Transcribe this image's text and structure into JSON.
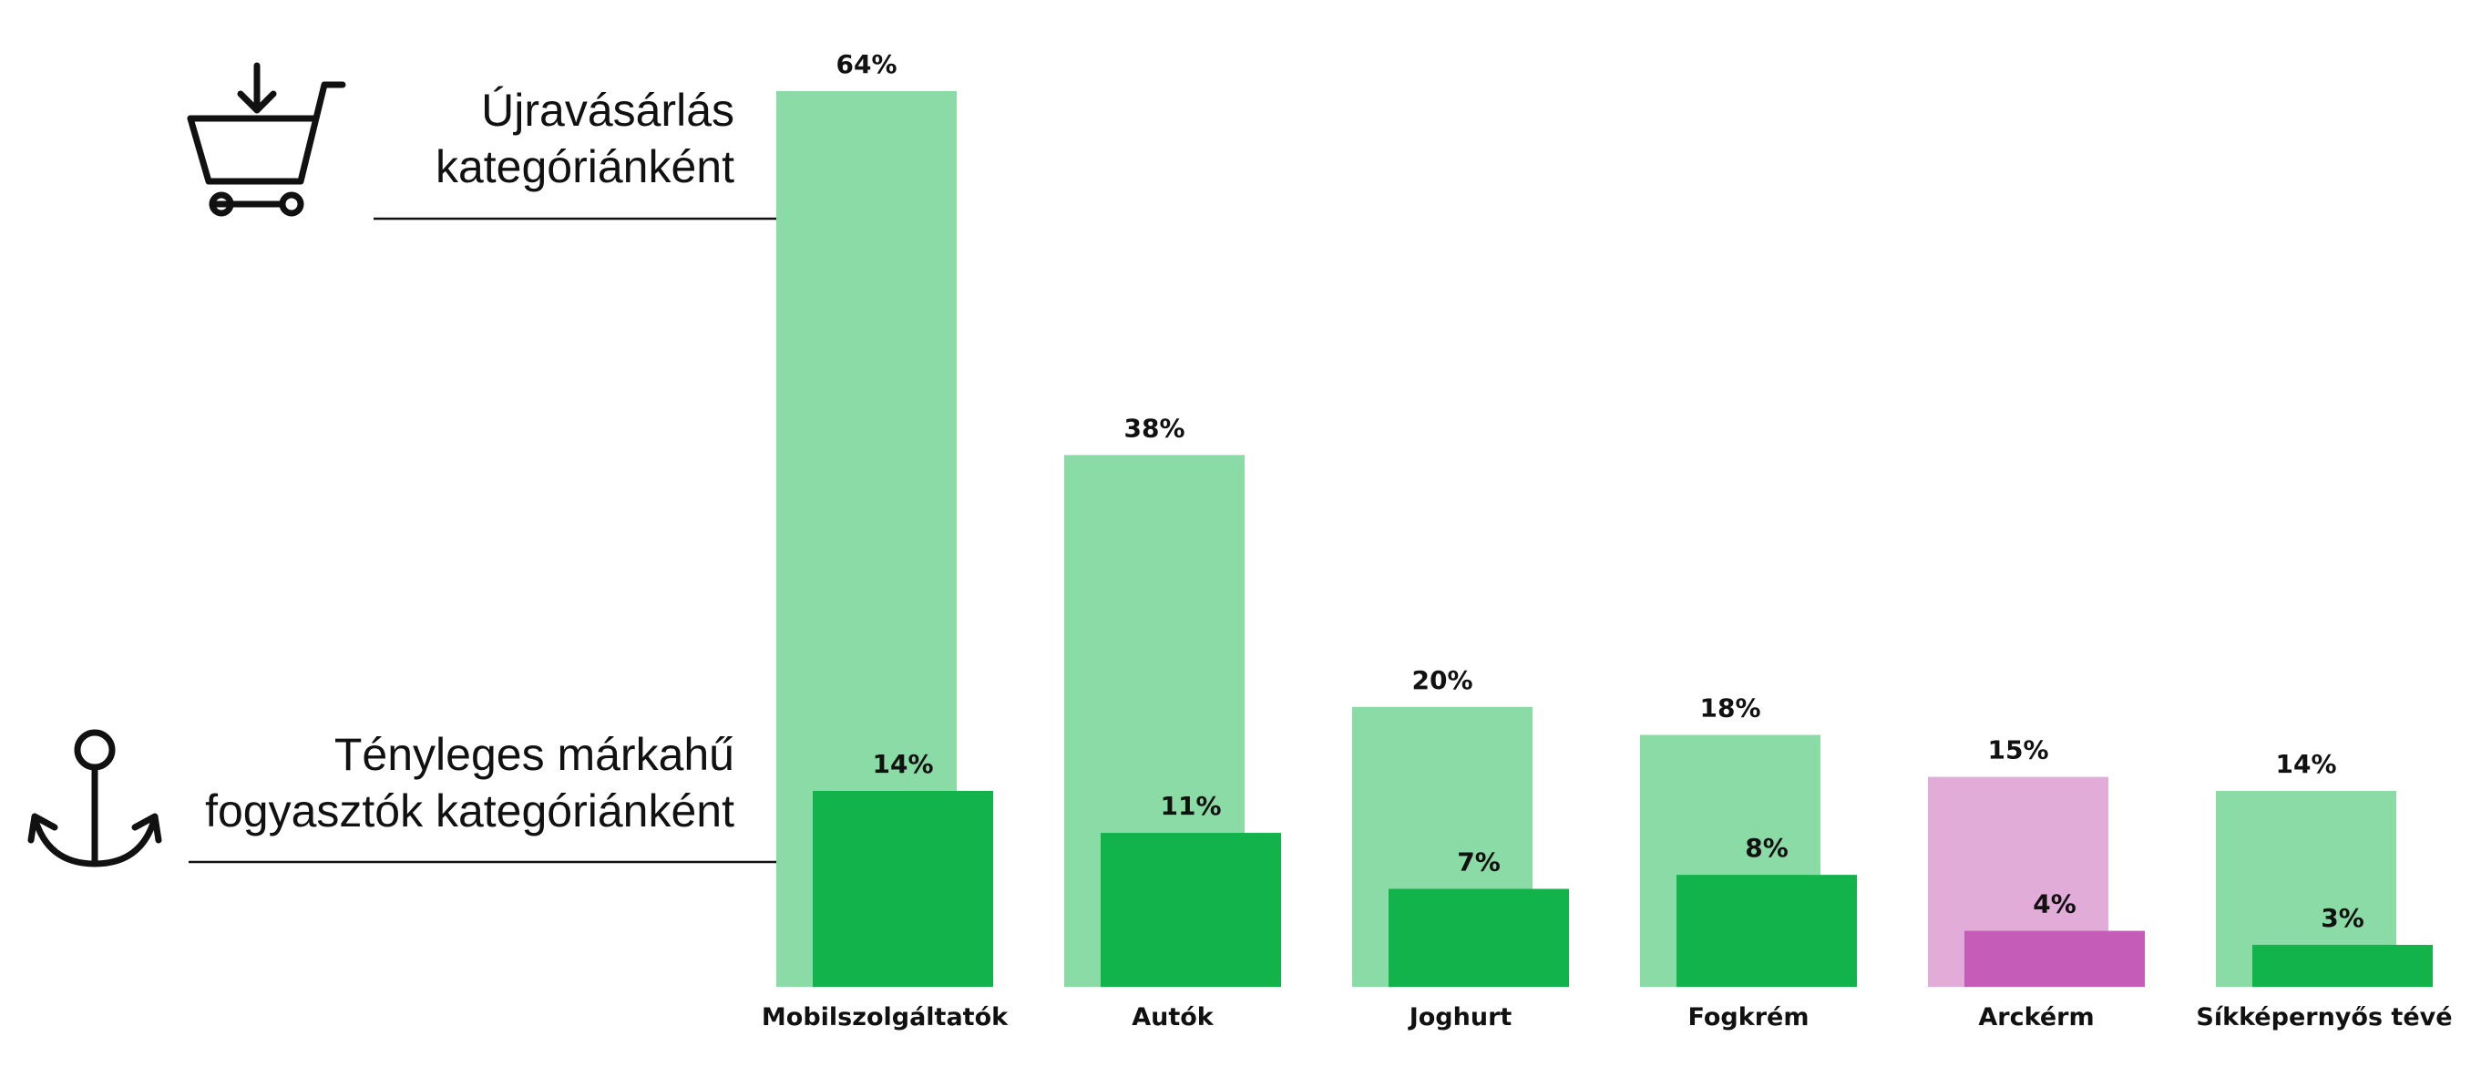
{
  "chart_data": {
    "type": "bar",
    "title": "",
    "xlabel": "",
    "ylabel": "",
    "ylim": [
      0,
      64
    ],
    "grid": false,
    "categories": [
      "Mobilszolgáltatók",
      "Autók",
      "Joghurt",
      "Fogkrém",
      "Arckérm",
      "Síkképernyős tévé"
    ],
    "series": [
      {
        "name": "Újravásárlás kategóriánként",
        "values": [
          64,
          38,
          20,
          18,
          15,
          14
        ],
        "labels": [
          "64%",
          "38%",
          "20%",
          "18%",
          "15%",
          "14%"
        ],
        "color": "#8adba5"
      },
      {
        "name": "Tényleges márkahű fogyasztók kategóriánként",
        "values": [
          14,
          11,
          7,
          8,
          4,
          3
        ],
        "labels": [
          "14%",
          "11%",
          "7%",
          "8%",
          "4%",
          "3%"
        ],
        "color": "#12b34b"
      }
    ],
    "highlight": {
      "category_index": 4,
      "back_color": "#e2acd9",
      "front_color": "#c55cb8"
    }
  },
  "legend": {
    "repurchase": {
      "line1": "Újravásárlás",
      "line2": "kategóriánként",
      "icon": "shopping-cart-icon"
    },
    "loyal": {
      "line1": "Tényleges márkahű",
      "line2": "fogyasztók kategóriánként",
      "icon": "anchor-icon"
    }
  }
}
